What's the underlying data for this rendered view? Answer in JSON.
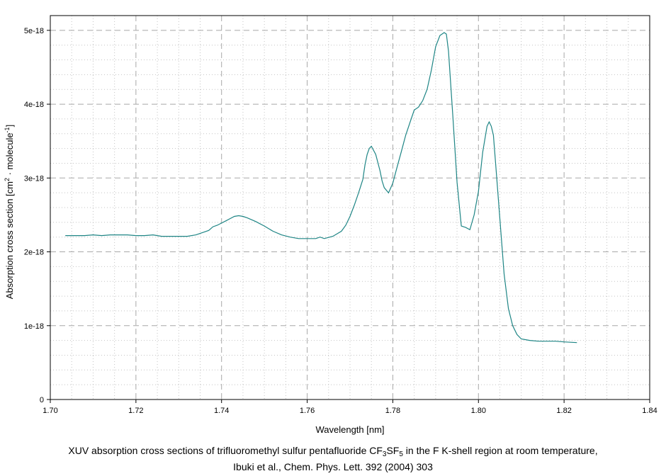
{
  "chart_data": {
    "type": "line",
    "xlabel": "Wavelength [nm]",
    "ylabel_parts": [
      "Absorption cross section [cm",
      "2",
      " · molecule",
      "-1",
      "]"
    ],
    "xlim": [
      1.7,
      1.84
    ],
    "ylim": [
      0,
      5.2e-18
    ],
    "x_ticks": [
      1.7,
      1.72,
      1.74,
      1.76,
      1.78,
      1.8,
      1.82,
      1.84
    ],
    "x_tick_labels": [
      "1.70",
      "1.72",
      "1.74",
      "1.76",
      "1.78",
      "1.80",
      "1.82",
      "1.84"
    ],
    "y_ticks": [
      0,
      1e-18,
      2e-18,
      3e-18,
      4e-18,
      5e-18
    ],
    "y_tick_labels": [
      "0",
      "1e-18",
      "2e-18",
      "3e-18",
      "4e-18",
      "5e-18"
    ],
    "grid": true,
    "line_color": "#1e8585",
    "series": [
      {
        "x": [
          1.7035,
          1.706,
          1.708,
          1.71,
          1.712,
          1.714,
          1.716,
          1.718,
          1.72,
          1.722,
          1.724,
          1.726,
          1.728,
          1.73,
          1.732,
          1.734,
          1.736,
          1.737,
          1.738,
          1.739,
          1.74,
          1.741,
          1.742,
          1.743,
          1.744,
          1.745,
          1.746,
          1.748,
          1.75,
          1.752,
          1.754,
          1.756,
          1.758,
          1.76,
          1.762,
          1.763,
          1.764,
          1.766,
          1.768,
          1.769,
          1.77,
          1.771,
          1.772,
          1.773,
          1.7735,
          1.774,
          1.7745,
          1.775,
          1.776,
          1.777,
          1.7775,
          1.778,
          1.779,
          1.78,
          1.781,
          1.782,
          1.783,
          1.784,
          1.785,
          1.786,
          1.787,
          1.788,
          1.789,
          1.79,
          1.791,
          1.792,
          1.7925,
          1.793,
          1.794,
          1.795,
          1.796,
          1.797,
          1.798,
          1.799,
          1.8,
          1.801,
          1.802,
          1.8025,
          1.803,
          1.8035,
          1.804,
          1.805,
          1.806,
          1.807,
          1.808,
          1.809,
          1.81,
          1.812,
          1.814,
          1.816,
          1.818,
          1.82,
          1.823
        ],
        "y": [
          2.22e-18,
          2.22e-18,
          2.22e-18,
          2.23e-18,
          2.22e-18,
          2.23e-18,
          2.23e-18,
          2.23e-18,
          2.22e-18,
          2.22e-18,
          2.23e-18,
          2.21e-18,
          2.21e-18,
          2.21e-18,
          2.21e-18,
          2.23e-18,
          2.27e-18,
          2.29e-18,
          2.34e-18,
          2.36e-18,
          2.39e-18,
          2.42e-18,
          2.45e-18,
          2.48e-18,
          2.49e-18,
          2.48e-18,
          2.46e-18,
          2.41e-18,
          2.35e-18,
          2.28e-18,
          2.23e-18,
          2.2e-18,
          2.18e-18,
          2.18e-18,
          2.18e-18,
          2.2e-18,
          2.18e-18,
          2.21e-18,
          2.28e-18,
          2.36e-18,
          2.48e-18,
          2.63e-18,
          2.8e-18,
          2.98e-18,
          3.18e-18,
          3.32e-18,
          3.4e-18,
          3.43e-18,
          3.32e-18,
          3.1e-18,
          2.96e-18,
          2.87e-18,
          2.8e-18,
          2.93e-18,
          3.15e-18,
          3.36e-18,
          3.58e-18,
          3.75e-18,
          3.92e-18,
          3.96e-18,
          4.05e-18,
          4.2e-18,
          4.46e-18,
          4.78e-18,
          4.93e-18,
          4.97e-18,
          4.95e-18,
          4.72e-18,
          3.86e-18,
          2.94e-18,
          2.35e-18,
          2.33e-18,
          2.3e-18,
          2.5e-18,
          2.82e-18,
          3.35e-18,
          3.7e-18,
          3.76e-18,
          3.7e-18,
          3.58e-18,
          3.2e-18,
          2.45e-18,
          1.7e-18,
          1.23e-18,
          1e-18,
          8.8e-19,
          8.2e-19,
          8e-19,
          7.9e-19,
          7.9e-19,
          7.9e-19,
          7.8e-19,
          7.7e-19
        ]
      }
    ]
  },
  "caption": {
    "line1_parts": [
      "XUV absorption cross sections of trifluoromethyl sulfur pentafluoride CF",
      "3",
      "SF",
      "5",
      " in the F K-shell region at room temperature,"
    ],
    "line2": "Ibuki et al., Chem. Phys. Lett. 392 (2004) 303"
  }
}
